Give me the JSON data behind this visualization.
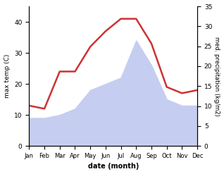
{
  "months": [
    "Jan",
    "Feb",
    "Mar",
    "Apr",
    "May",
    "Jun",
    "Jul",
    "Aug",
    "Sep",
    "Oct",
    "Nov",
    "Dec"
  ],
  "temp": [
    13,
    12,
    24,
    24,
    32,
    37,
    41,
    41,
    33,
    19,
    17,
    18
  ],
  "precip_left_scale": [
    9,
    9,
    10,
    12,
    18,
    20,
    22,
    34,
    26,
    15,
    13,
    13
  ],
  "temp_color": "#cc3333",
  "precip_fill_color": "#c5cef0",
  "temp_ylim": [
    0,
    45
  ],
  "precip_ylim": [
    0,
    35
  ],
  "temp_yticks": [
    0,
    10,
    20,
    30,
    40
  ],
  "precip_yticks": [
    0,
    5,
    10,
    15,
    20,
    25,
    30,
    35
  ],
  "xlabel": "date (month)",
  "ylabel_left": "max temp (C)",
  "ylabel_right": "med. precipitation (kg/m2)",
  "background_color": "#ffffff"
}
